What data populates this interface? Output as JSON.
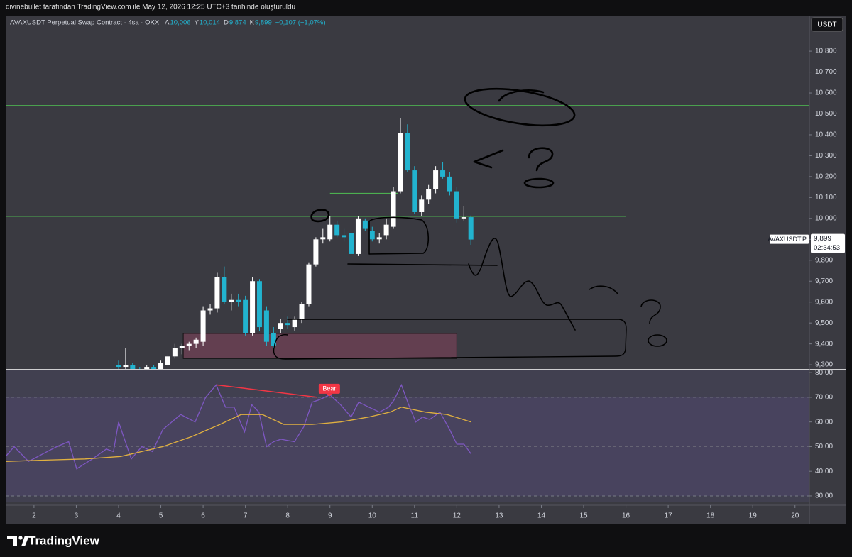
{
  "header": {
    "title": "divinebullet tarafından TradingView.com ile May 12, 2026 12:25 UTC+3 tarihinde oluşturuldu",
    "symbol": "AVAXUSDT Perpetual Swap Contract · 4sa · OKX",
    "ohlc": [
      {
        "label": "A",
        "value": "10,006"
      },
      {
        "label": "Y",
        "value": "10,014"
      },
      {
        "label": "D",
        "value": "9,874"
      },
      {
        "label": "K",
        "value": "9,899"
      }
    ],
    "change": "−0,107 (−1,07%)",
    "currency": "USDT"
  },
  "footer": {
    "brand": "TradingView"
  },
  "chart_data": [
    {
      "type": "candlestick",
      "x": [
        4.0,
        4.167,
        4.333,
        4.5,
        4.667,
        4.833,
        5.0,
        5.167,
        5.333,
        5.5,
        5.667,
        5.833,
        6.0,
        6.167,
        6.333,
        6.5,
        6.667,
        6.833,
        7.0,
        7.167,
        7.333,
        7.5,
        7.667,
        7.833,
        8.0,
        8.167,
        8.333,
        8.5,
        8.667,
        8.833,
        9.0,
        9.167,
        9.333,
        9.5,
        9.667,
        9.833,
        10.0,
        10.167,
        10.333,
        10.5,
        10.667,
        10.833,
        11.0,
        11.167,
        11.333,
        11.5,
        11.667,
        11.833,
        12.0,
        12.167,
        12.333
      ],
      "open": [
        9.3,
        9.29,
        9.3,
        9.27,
        9.26,
        9.29,
        9.28,
        9.3,
        9.34,
        9.38,
        9.39,
        9.4,
        9.41,
        9.56,
        9.57,
        9.72,
        9.6,
        9.61,
        9.61,
        9.45,
        9.7,
        9.56,
        9.45,
        9.47,
        9.5,
        9.48,
        9.52,
        9.59,
        9.78,
        9.9,
        9.9,
        9.97,
        9.92,
        9.93,
        9.83,
        9.99,
        9.94,
        9.9,
        9.92,
        9.96,
        10.13,
        10.41,
        10.23,
        10.03,
        10.09,
        10.14,
        10.23,
        10.2,
        10.13,
        10.0,
        10.006
      ],
      "high": [
        9.32,
        9.38,
        9.31,
        9.29,
        9.3,
        9.3,
        9.32,
        9.35,
        9.4,
        9.4,
        9.41,
        9.43,
        9.58,
        9.59,
        9.74,
        9.77,
        9.64,
        9.64,
        9.63,
        9.72,
        9.71,
        9.58,
        9.48,
        9.52,
        9.53,
        9.53,
        9.6,
        9.79,
        9.91,
        9.95,
        10.01,
        9.99,
        9.95,
        9.95,
        10.01,
        10.0,
        9.96,
        9.93,
        10.0,
        10.15,
        10.48,
        10.45,
        10.25,
        10.11,
        10.16,
        10.25,
        10.27,
        10.22,
        10.15,
        10.06,
        10.014
      ],
      "low": [
        9.27,
        9.28,
        9.26,
        9.24,
        9.25,
        9.26,
        9.27,
        9.29,
        9.33,
        9.35,
        9.37,
        9.38,
        9.39,
        9.54,
        9.55,
        9.59,
        9.56,
        9.58,
        9.44,
        9.44,
        9.46,
        9.39,
        9.37,
        9.45,
        9.47,
        9.46,
        9.5,
        9.58,
        9.77,
        9.88,
        9.89,
        9.91,
        9.89,
        9.81,
        9.82,
        9.94,
        9.89,
        9.88,
        9.9,
        9.95,
        10.12,
        10.22,
        10.02,
        10.01,
        10.07,
        10.12,
        10.19,
        10.11,
        9.98,
        9.99,
        9.874
      ],
      "close": [
        9.29,
        9.3,
        9.27,
        9.26,
        9.29,
        9.28,
        9.31,
        9.34,
        9.38,
        9.39,
        9.4,
        9.42,
        9.56,
        9.57,
        9.72,
        9.6,
        9.61,
        9.6,
        9.45,
        9.7,
        9.48,
        9.41,
        9.39,
        9.5,
        9.49,
        9.52,
        9.59,
        9.78,
        9.9,
        9.91,
        9.97,
        9.92,
        9.91,
        9.83,
        10.0,
        9.95,
        9.9,
        9.91,
        9.97,
        10.13,
        10.41,
        10.23,
        10.03,
        10.09,
        10.14,
        10.23,
        10.2,
        10.13,
        10.0,
        10.006,
        9.899
      ],
      "up_color": "#ffffff",
      "down_color": "#22b3cf",
      "xlim": [
        1.33,
        20.34
      ],
      "ylim": [
        9.28,
        10.97
      ],
      "yticks": [
        {
          "value": 9.3,
          "label": "9,300"
        },
        {
          "value": 9.4,
          "label": "9,400"
        },
        {
          "value": 9.5,
          "label": "9,500"
        },
        {
          "value": 9.6,
          "label": "9,600"
        },
        {
          "value": 9.7,
          "label": "9,700"
        },
        {
          "value": 9.8,
          "label": "9,800"
        },
        {
          "value": 9.9,
          "label": "9,900"
        },
        {
          "value": 10.0,
          "label": "10,000"
        },
        {
          "value": 10.1,
          "label": "10,100"
        },
        {
          "value": 10.2,
          "label": "10,200"
        },
        {
          "value": 10.3,
          "label": "10,300"
        },
        {
          "value": 10.4,
          "label": "10,400"
        },
        {
          "value": 10.5,
          "label": "10,500"
        },
        {
          "value": 10.6,
          "label": "10,600"
        },
        {
          "value": 10.7,
          "label": "10,700"
        },
        {
          "value": 10.8,
          "label": "10,800"
        }
      ],
      "horizontal_lines": [
        {
          "value": 10.54,
          "color": "#4caf50"
        },
        {
          "value": 10.01,
          "x_end": 16.0,
          "color": "#4caf50"
        },
        {
          "value": 10.12,
          "x_start": 9.0,
          "x_end": 10.6,
          "color": "#4caf50"
        }
      ],
      "zones": [
        {
          "x": [
            5.53,
            12.0
          ],
          "y": [
            9.33,
            9.45
          ],
          "color": "rgba(150,70,100,0.45)"
        }
      ],
      "last_price": {
        "symbol": "AVAXUSDT.P",
        "value": 9.899,
        "label": "9,899",
        "countdown": "02:34:53"
      }
    },
    {
      "type": "line",
      "xlim": [
        1.33,
        20.34
      ],
      "xticks": [
        2,
        3,
        4,
        5,
        6,
        7,
        8,
        9,
        10,
        11,
        12,
        13,
        14,
        15,
        16,
        17,
        18,
        19,
        20
      ],
      "ylim": [
        27.4,
        80.9
      ],
      "yticks": [
        {
          "value": 30,
          "label": "30,00"
        },
        {
          "value": 40,
          "label": "40,00"
        },
        {
          "value": 50,
          "label": "50,00"
        },
        {
          "value": 60,
          "label": "60,00"
        },
        {
          "value": 70,
          "label": "70,00"
        },
        {
          "value": 80,
          "label": "80,00"
        }
      ],
      "band": [
        30,
        70
      ],
      "middle": 50,
      "band_color": "rgba(126,87,194,0.12)",
      "series": [
        {
          "color": "#7e57c2",
          "x": [
            1.33,
            1.53,
            1.87,
            2.2,
            2.54,
            2.82,
            3.01,
            3.38,
            3.71,
            3.88,
            4.0,
            4.3,
            4.55,
            4.8,
            5.05,
            5.47,
            5.81,
            6.06,
            6.31,
            6.53,
            6.73,
            6.98,
            7.15,
            7.32,
            7.5,
            7.67,
            7.84,
            8.16,
            8.38,
            8.58,
            8.75,
            9.0,
            9.25,
            9.5,
            9.68,
            9.92,
            10.17,
            10.39,
            10.52,
            10.69,
            10.86,
            11.03,
            11.19,
            11.36,
            11.6,
            11.83,
            12.0,
            12.17,
            12.34
          ],
          "values": [
            46,
            50,
            44,
            47,
            50,
            52,
            41,
            45,
            49,
            48,
            60,
            45,
            50,
            48,
            57,
            63,
            60,
            70,
            75,
            66,
            66,
            56,
            67,
            64,
            50,
            52,
            53,
            52,
            58,
            68,
            69,
            71,
            67,
            62,
            68,
            66,
            64,
            66,
            69,
            75,
            67,
            60,
            62,
            61,
            64,
            57,
            51,
            51,
            47
          ]
        },
        {
          "color": "#e0b040",
          "x": [
            1.33,
            2.2,
            3.21,
            4.05,
            5.05,
            5.72,
            6.4,
            6.9,
            7.4,
            7.91,
            8.58,
            9.25,
            9.92,
            10.42,
            10.69,
            11.26,
            11.77,
            12.34
          ],
          "values": [
            44,
            44.5,
            45,
            46,
            50,
            54,
            59,
            63,
            63,
            59,
            59,
            60,
            62,
            64,
            66,
            64,
            63,
            60
          ]
        }
      ],
      "annotations": [
        {
          "text": "Bear",
          "x": [
            6.33,
            8.7
          ],
          "values": [
            75,
            70
          ],
          "color": "#f23645"
        }
      ]
    }
  ]
}
